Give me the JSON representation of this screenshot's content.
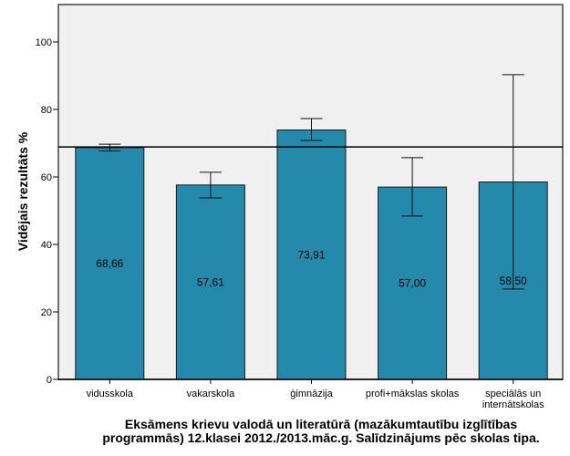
{
  "chart_data": {
    "type": "bar",
    "title": [
      "Eksāmens krievu valodā un literatūrā (mazākumtautību izglītības",
      "programmās) 12.klasei 2012./2013.māc.g. Salīdzinājums pēc skolas tipa."
    ],
    "xlabel": "",
    "ylabel": "Vidējais rezultāts %",
    "ylim": [
      0,
      110
    ],
    "yticks": [
      0,
      20,
      40,
      60,
      80,
      100
    ],
    "categories": [
      [
        "vidusskola"
      ],
      [
        "vakarskola"
      ],
      [
        "ģimnāzija"
      ],
      [
        "profi+mākslas skolas"
      ],
      [
        "speciālās un",
        "internātskolas"
      ]
    ],
    "values": [
      68.66,
      57.61,
      73.91,
      57.0,
      58.5
    ],
    "value_labels": [
      "68,66",
      "57,61",
      "73,91",
      "57,00",
      "58,50"
    ],
    "error_low": [
      67.7,
      53.8,
      70.8,
      48.4,
      26.8
    ],
    "error_high": [
      69.7,
      61.4,
      77.3,
      65.7,
      90.3
    ],
    "reference_line": 68.9,
    "grid": false,
    "bar_color": "#2589ab",
    "plot_bg": "#f0f0f0"
  }
}
